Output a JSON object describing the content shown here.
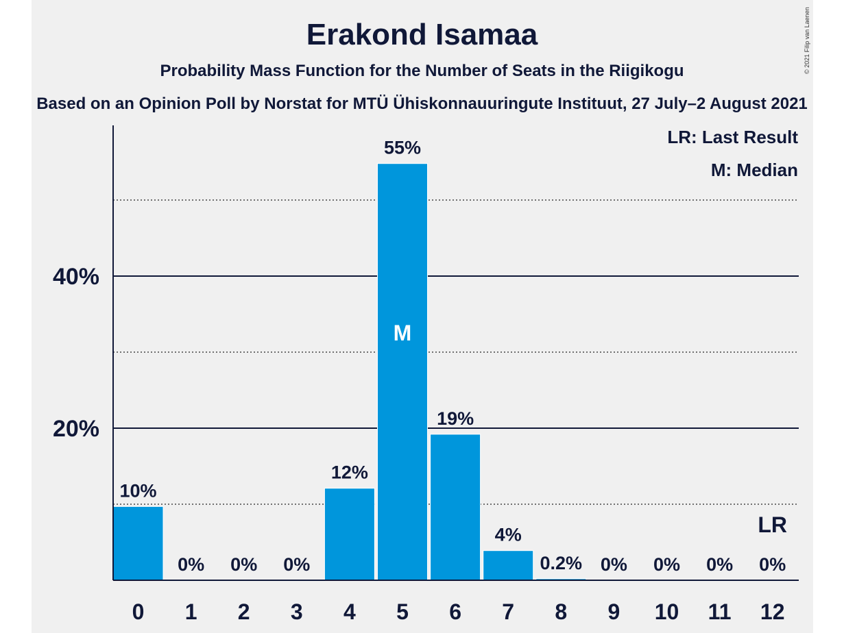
{
  "chart_data": {
    "type": "bar",
    "title": "Erakond Isamaa",
    "subtitle": "Probability Mass Function for the Number of Seats in the Riigikogu",
    "source": "Based on an Opinion Poll by Norstat for MTÜ Ühiskonnauuringute Instituut, 27 July–2 August 2021",
    "copyright": "© 2021 Filip van Laenen",
    "categories": [
      "0",
      "1",
      "2",
      "3",
      "4",
      "5",
      "6",
      "7",
      "8",
      "9",
      "10",
      "11",
      "12"
    ],
    "values": [
      9.7,
      0,
      0,
      0,
      12.1,
      54.8,
      19.2,
      3.9,
      0.2,
      0,
      0,
      0,
      0
    ],
    "value_labels": [
      "10%",
      "0%",
      "0%",
      "0%",
      "12%",
      "55%",
      "19%",
      "4%",
      "0.2%",
      "0%",
      "0%",
      "0%",
      "0%"
    ],
    "ylim": [
      0,
      58
    ],
    "y_ticks": [
      {
        "value": 20,
        "label": "20%"
      },
      {
        "value": 40,
        "label": "40%"
      }
    ],
    "minor_gridlines": [
      10,
      30,
      50
    ],
    "median_index": 5,
    "median_marker": "M",
    "last_result_index": 12,
    "last_result_marker": "LR",
    "legend": [
      "LR: Last Result",
      "M: Median"
    ],
    "legend_position": "top-right",
    "colors": {
      "bar": "#0096dc",
      "text": "#101838",
      "background": "#f0f0f0"
    }
  }
}
